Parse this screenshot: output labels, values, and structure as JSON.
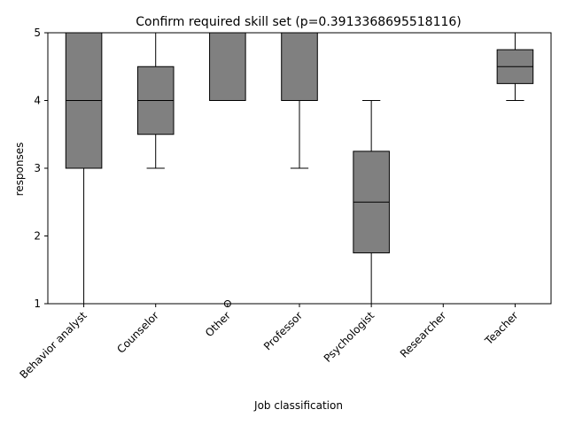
{
  "chart_data": {
    "type": "box",
    "title": "Confirm required skill set (p=0.3913368695518116)",
    "xlabel": "Job classification",
    "ylabel": "responses",
    "ylim": [
      1,
      5
    ],
    "y_ticks": [
      1,
      2,
      3,
      4,
      5
    ],
    "box_color": "#808080",
    "categories": [
      "Behavior analyst",
      "Counselor",
      "Other",
      "Professor",
      "Psychologist",
      "Researcher",
      "Teacher"
    ],
    "boxes": [
      {
        "whisker_low": 1,
        "q1": 3,
        "median": 4,
        "q3": 5,
        "whisker_high": 5,
        "outliers": []
      },
      {
        "whisker_low": 3,
        "q1": 3.5,
        "median": 4,
        "q3": 4.5,
        "whisker_high": 5,
        "outliers": []
      },
      {
        "whisker_low": 4,
        "q1": 4,
        "median": 4,
        "q3": 5,
        "whisker_high": 5,
        "outliers": [
          1
        ]
      },
      {
        "whisker_low": 3,
        "q1": 4,
        "median": 4,
        "q3": 5,
        "whisker_high": 5,
        "outliers": []
      },
      {
        "whisker_low": 1,
        "q1": 1.75,
        "median": 2.5,
        "q3": 3.25,
        "whisker_high": 4,
        "outliers": []
      },
      {
        "whisker_low": 5,
        "q1": 5,
        "median": 5,
        "q3": 5,
        "whisker_high": 5,
        "outliers": []
      },
      {
        "whisker_low": 4,
        "q1": 4.25,
        "median": 4.5,
        "q3": 4.75,
        "whisker_high": 5,
        "outliers": []
      }
    ]
  }
}
